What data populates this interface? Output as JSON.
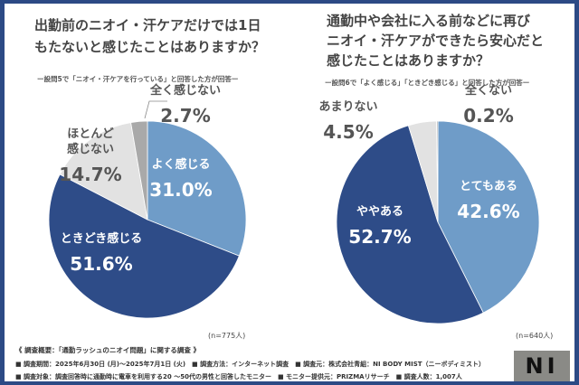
{
  "chart_data": [
    {
      "type": "pie",
      "title": "出勤前のニオイ・汗ケアだけでは1日もたないと感じたことはありますか？",
      "subtitle": "ー設問5で「ニオイ・汗ケアを行っている」と回答した方が回答ー",
      "n_label": "(n=775人)",
      "slices": [
        {
          "label": "よく感じる",
          "value": 31.0,
          "display": "31.0%",
          "color": "#6f9cc8"
        },
        {
          "label": "ときどき感じる",
          "value": 51.6,
          "display": "51.6%",
          "color": "#2e4c88"
        },
        {
          "label": "ほとんど感じない",
          "value": 14.7,
          "display": "14.7%",
          "color": "#e2e2e2"
        },
        {
          "label": "全く感じない",
          "value": 2.7,
          "display": "2.7%",
          "color": "#a9a9a9"
        }
      ]
    },
    {
      "type": "pie",
      "title": "通勤中や会社に入る前などに再びニオイ・汗ケアができたら安心だと感じたことはありますか？",
      "subtitle": "ー設問6で「よく感じる」「ときどき感じる」と回答した方が回答ー",
      "n_label": "(n=640人)",
      "slices": [
        {
          "label": "とてもある",
          "value": 42.6,
          "display": "42.6%",
          "color": "#6f9cc8"
        },
        {
          "label": "ややある",
          "value": 52.7,
          "display": "52.7%",
          "color": "#2e4c88"
        },
        {
          "label": "あまりない",
          "value": 4.5,
          "display": "4.5%",
          "color": "#e2e2e2"
        },
        {
          "label": "全くない",
          "value": 0.2,
          "display": "0.2%",
          "color": "#a9a9a9"
        }
      ]
    }
  ],
  "titles": {
    "left": [
      "出勤前のニオイ・汗ケアだけでは1日",
      "もたないと感じたことはありますか？"
    ],
    "right": [
      "通勤中や会社に入る前などに再び",
      "ニオイ・汗ケアができたら安心だと",
      "感じたことはありますか？"
    ]
  },
  "footer": {
    "heading": "《 調査概要：「通勤ラッシュのニオイ問題」に関する調査 》",
    "line1": "■ 調査期間：2025年6月30日 (月)～2025年7月1日 (火)　■ 調査方法：インターネット調査　■ 調査元：株式会社青組：NI BODY MIST（ニーボディミスト）",
    "line2": "■ 調査対象：調査回答時に通勤時に電車を利用する20 ～50代の男性と回答したモニター　■ モニター提供元：PRIZMAリサーチ　■ 調査人数：1,007人",
    "logo": "NI"
  }
}
